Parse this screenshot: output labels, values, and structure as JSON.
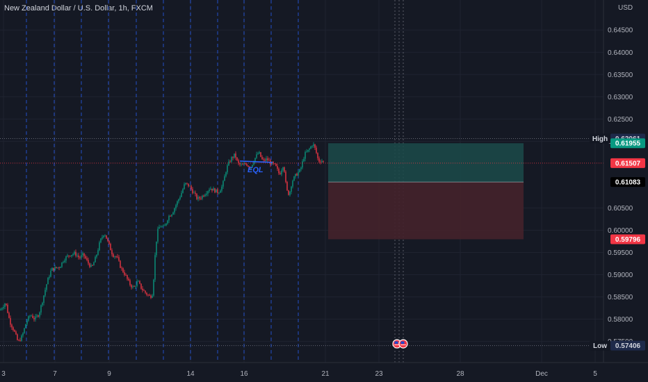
{
  "header": {
    "symbol_title": "New Zealand Dollar / U.S. Dollar, 1h, FXCM"
  },
  "chart_data": {
    "type": "candlestick",
    "title": "New Zealand Dollar / U.S. Dollar, 1h, FXCM",
    "currency": "USD",
    "y_axis_ticks": [
      "0.64500",
      "0.64000",
      "0.63500",
      "0.63000",
      "0.62500",
      "0.62000",
      "0.60500",
      "0.60000",
      "0.59500",
      "0.59000",
      "0.58500",
      "0.58000",
      "0.57500"
    ],
    "x_axis_ticks": [
      "3",
      "7",
      "9",
      "14",
      "16",
      "21",
      "23",
      "28",
      "Dec",
      "5"
    ],
    "ylim": [
      0.5715,
      0.6505
    ],
    "grid": true,
    "colors": {
      "up": "#089981",
      "down": "#f23645",
      "background": "#151924",
      "session_line": "#2962ff",
      "text": "#b2b5be"
    },
    "price_path": [
      [
        0,
        0.582
      ],
      [
        8,
        0.5838
      ],
      [
        14,
        0.5795
      ],
      [
        20,
        0.5775
      ],
      [
        26,
        0.5748
      ],
      [
        32,
        0.5762
      ],
      [
        38,
        0.5795
      ],
      [
        44,
        0.581
      ],
      [
        50,
        0.58
      ],
      [
        56,
        0.5812
      ],
      [
        60,
        0.5835
      ],
      [
        64,
        0.586
      ],
      [
        68,
        0.5885
      ],
      [
        74,
        0.5912
      ],
      [
        80,
        0.5915
      ],
      [
        86,
        0.5918
      ],
      [
        92,
        0.5935
      ],
      [
        100,
        0.5945
      ],
      [
        108,
        0.5948
      ],
      [
        114,
        0.5938
      ],
      [
        120,
        0.5945
      ],
      [
        126,
        0.5928
      ],
      [
        132,
        0.5915
      ],
      [
        138,
        0.594
      ],
      [
        144,
        0.5975
      ],
      [
        150,
        0.5995
      ],
      [
        156,
        0.597
      ],
      [
        162,
        0.5945
      ],
      [
        168,
        0.594
      ],
      [
        174,
        0.5915
      ],
      [
        180,
        0.59
      ],
      [
        186,
        0.588
      ],
      [
        192,
        0.587
      ],
      [
        198,
        0.5885
      ],
      [
        204,
        0.5868
      ],
      [
        210,
        0.5858
      ],
      [
        216,
        0.585
      ],
      [
        220,
        0.586
      ],
      [
        222,
        0.5925
      ],
      [
        226,
        0.5995
      ],
      [
        230,
        0.601
      ],
      [
        236,
        0.6005
      ],
      [
        242,
        0.603
      ],
      [
        248,
        0.604
      ],
      [
        254,
        0.606
      ],
      [
        260,
        0.608
      ],
      [
        266,
        0.6105
      ],
      [
        272,
        0.61
      ],
      [
        278,
        0.6085
      ],
      [
        284,
        0.607
      ],
      [
        290,
        0.6075
      ],
      [
        296,
        0.6085
      ],
      [
        302,
        0.6095
      ],
      [
        308,
        0.609
      ],
      [
        314,
        0.6085
      ],
      [
        320,
        0.61
      ],
      [
        326,
        0.614
      ],
      [
        332,
        0.616
      ],
      [
        338,
        0.617
      ],
      [
        342,
        0.615
      ],
      [
        348,
        0.6145
      ],
      [
        354,
        0.615
      ],
      [
        360,
        0.614
      ],
      [
        366,
        0.616
      ],
      [
        372,
        0.6175
      ],
      [
        378,
        0.6155
      ],
      [
        384,
        0.616
      ],
      [
        390,
        0.615
      ],
      [
        396,
        0.6145
      ],
      [
        402,
        0.6125
      ],
      [
        408,
        0.615
      ],
      [
        412,
        0.609
      ],
      [
        416,
        0.608
      ],
      [
        420,
        0.611
      ],
      [
        426,
        0.6125
      ],
      [
        432,
        0.6135
      ],
      [
        438,
        0.617
      ],
      [
        444,
        0.618
      ],
      [
        450,
        0.6195
      ],
      [
        454,
        0.618
      ],
      [
        458,
        0.6155
      ],
      [
        462,
        0.6158
      ],
      [
        466,
        0.6151
      ]
    ],
    "session_lines_x": [
      38,
      78,
      117,
      156,
      196,
      235,
      274,
      313,
      351,
      390,
      429
    ],
    "event_lines_x": [
      568,
      574,
      580
    ],
    "levels": {
      "high": {
        "label": "High",
        "value": "0.62061"
      },
      "low": {
        "label": "Low",
        "value": "0.57406"
      },
      "current": {
        "value": "0.61507"
      },
      "target": {
        "value": "0.61955"
      },
      "entry": {
        "value": "0.61083"
      },
      "stop": {
        "value": "0.59796"
      }
    },
    "position": {
      "target_zone": {
        "from": 0.61083,
        "to": 0.61955,
        "color": "#1b4b4a"
      },
      "stop_zone": {
        "from": 0.59796,
        "to": 0.61083,
        "color": "#44222b"
      }
    },
    "annotation": {
      "text": "EQL",
      "value": 0.6143
    }
  }
}
